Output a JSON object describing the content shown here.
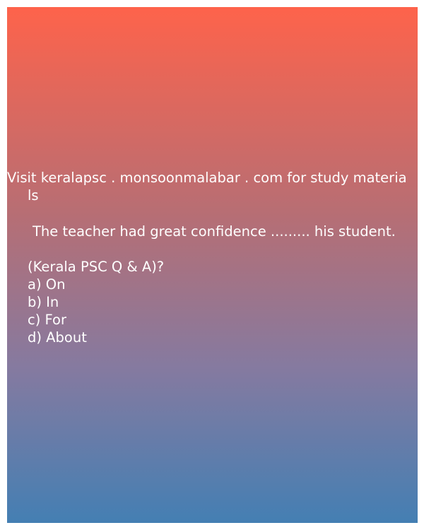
{
  "promo": {
    "line1": "Visit keralapsc . monsoonmalabar . com for study materia",
    "line2": "ls"
  },
  "question": {
    "text": "The teacher had great confidence ......... his student.",
    "source": "(Kerala PSC Q & A)?"
  },
  "options": [
    "a) On",
    "b) In",
    "c) For",
    "d) About"
  ],
  "colors": {
    "gradient_top": "#fe634b",
    "gradient_bottom": "#447fb3",
    "text": "#ffffff"
  }
}
